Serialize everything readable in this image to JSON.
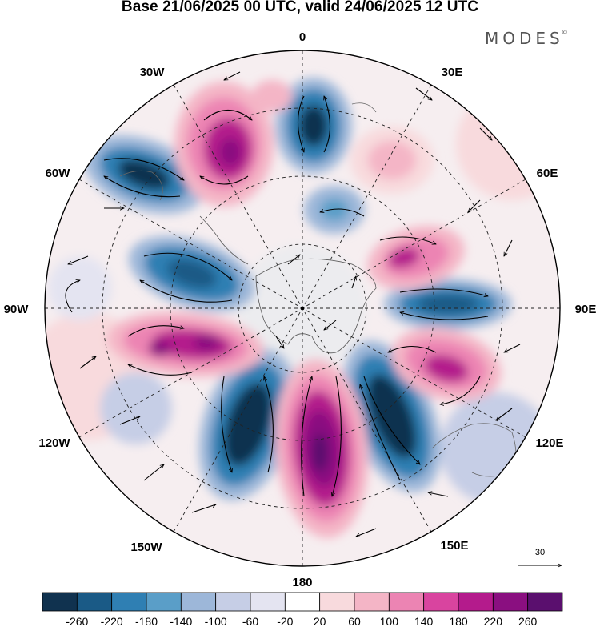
{
  "title": "Base 21/06/2025 00 UTC, valid 24/06/2025 12 UTC",
  "logo": {
    "text": "MODES",
    "mark": "©"
  },
  "longitude_labels": {
    "lon_0": "0",
    "lon_30e": "30E",
    "lon_60e": "60E",
    "lon_90e": "90E",
    "lon_120e": "120E",
    "lon_150e": "150E",
    "lon_180": "180",
    "lon_150w": "150W",
    "lon_120w": "120W",
    "lon_90w": "90W",
    "lon_60w": "60W",
    "lon_30w": "30W"
  },
  "vector_reference": {
    "value": "30"
  },
  "colorbar": {
    "ticks": [
      "-260",
      "-220",
      "-180",
      "-140",
      "-100",
      "-60",
      "-20",
      "20",
      "60",
      "100",
      "140",
      "180",
      "220",
      "260"
    ],
    "colors": [
      "#10324f",
      "#1a5a86",
      "#2f7fb3",
      "#5a9ec8",
      "#9db7d9",
      "#c6cee6",
      "#e4e4f1",
      "#ffffff",
      "#f8dadd",
      "#f4b5c6",
      "#ec84b3",
      "#d9449f",
      "#b41b8c",
      "#8a0f80",
      "#5a0f6e"
    ]
  },
  "map": {
    "projection": "polar-stereographic-south",
    "graticule": "dashed",
    "anomaly_centers": [
      {
        "sign": "negative",
        "level": -220
      },
      {
        "sign": "negative",
        "level": -260
      },
      {
        "sign": "negative",
        "level": -220
      },
      {
        "sign": "negative",
        "level": -220
      },
      {
        "sign": "negative",
        "level": -260
      },
      {
        "sign": "negative",
        "level": -260
      },
      {
        "sign": "positive",
        "level": 220
      },
      {
        "sign": "positive",
        "level": 180
      },
      {
        "sign": "positive",
        "level": 220
      },
      {
        "sign": "positive",
        "level": 220
      },
      {
        "sign": "positive",
        "level": 260
      }
    ]
  }
}
